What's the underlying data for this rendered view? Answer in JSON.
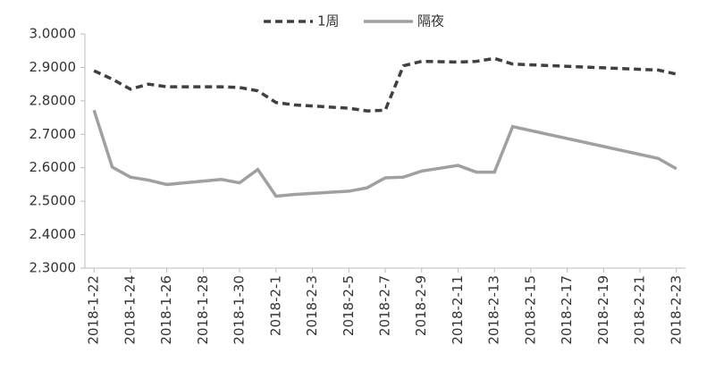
{
  "chart_data": {
    "type": "line",
    "x": [
      "2018-1-22",
      "2018-1-23",
      "2018-1-24",
      "2018-1-25",
      "2018-1-26",
      "2018-1-29",
      "2018-1-30",
      "2018-1-31",
      "2018-2-1",
      "2018-2-2",
      "2018-2-5",
      "2018-2-6",
      "2018-2-7",
      "2018-2-8",
      "2018-2-9",
      "2018-2-11",
      "2018-2-12",
      "2018-2-13",
      "2018-2-14",
      "2018-2-22",
      "2018-2-23"
    ],
    "series": [
      {
        "name": "1周",
        "color": "#404040",
        "dashed": true,
        "values": [
          2.89,
          2.865,
          2.835,
          2.85,
          2.842,
          2.842,
          2.84,
          2.83,
          2.795,
          2.788,
          2.778,
          2.77,
          2.772,
          2.905,
          2.918,
          2.916,
          2.918,
          2.927,
          2.91,
          2.892,
          2.88
        ]
      },
      {
        "name": "隔夜",
        "color": "#a0a0a0",
        "dashed": false,
        "values": [
          2.772,
          2.602,
          2.572,
          2.563,
          2.55,
          2.565,
          2.555,
          2.595,
          2.515,
          2.52,
          2.53,
          2.54,
          2.57,
          2.572,
          2.59,
          2.607,
          2.587,
          2.587,
          2.723,
          2.628,
          2.597
        ]
      }
    ],
    "xticks": [
      "2018-1-22",
      "2018-1-24",
      "2018-1-26",
      "2018-1-28",
      "2018-1-30",
      "2018-2-1",
      "2018-2-3",
      "2018-2-5",
      "2018-2-7",
      "2018-2-9",
      "2018-2-11",
      "2018-2-13",
      "2018-2-15",
      "2018-2-17",
      "2018-2-19",
      "2018-2-21",
      "2018-2-23"
    ],
    "ylim": [
      2.3,
      3.0
    ],
    "yticks": [
      {
        "value": 2.3,
        "label": "2.3000"
      },
      {
        "value": 2.4,
        "label": "2.4000"
      },
      {
        "value": 2.5,
        "label": "2.5000"
      },
      {
        "value": 2.6,
        "label": "2.6000"
      },
      {
        "value": 2.7,
        "label": "2.7000"
      },
      {
        "value": 2.8,
        "label": "2.8000"
      },
      {
        "value": 2.9,
        "label": "2.9000"
      },
      {
        "value": 3.0,
        "label": "3.0000"
      }
    ],
    "legend": "top"
  }
}
